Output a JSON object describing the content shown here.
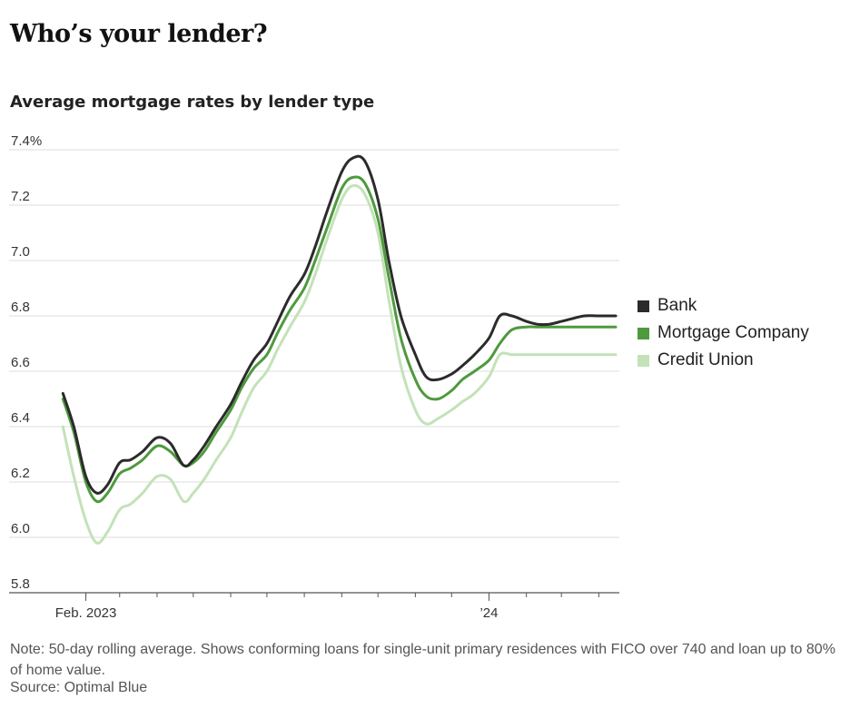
{
  "headline": "Who’s your lender?",
  "note": "Note: 50-day rolling average. Shows conforming loans for single-unit primary residences with FICO over 740 and loan up to 80% of home value.",
  "source": "Source: Optimal Blue",
  "colors": {
    "bank": "#2b2b2b",
    "mortgage_company": "#4e9a3e",
    "credit_union": "#c3e2b8",
    "grid": "#dcdcdc",
    "axis": "#555555"
  },
  "chart_data": {
    "type": "line",
    "title": "Average mortgage rates by lender type",
    "xlabel": "",
    "ylabel": "",
    "x_tick_labels": [
      {
        "date": "2023-02-01",
        "label": "Feb. 2023"
      },
      {
        "date": "2024-01-01",
        "label": "’24"
      }
    ],
    "x_minor_ticks": [
      "2023-02-01",
      "2023-03-01",
      "2023-04-01",
      "2023-05-01",
      "2023-06-01",
      "2023-07-01",
      "2023-08-01",
      "2023-09-01",
      "2023-10-01",
      "2023-11-01",
      "2023-12-01",
      "2024-01-01",
      "2024-02-01",
      "2024-03-01",
      "2024-04-01"
    ],
    "xlim": [
      "2023-01-03",
      "2024-04-18"
    ],
    "ylim": [
      5.8,
      7.4
    ],
    "y_ticks": [
      {
        "value": 5.8,
        "label": "5.8"
      },
      {
        "value": 6.0,
        "label": "6.0"
      },
      {
        "value": 6.2,
        "label": "6.2"
      },
      {
        "value": 6.4,
        "label": "6.4"
      },
      {
        "value": 6.6,
        "label": "6.6"
      },
      {
        "value": 6.8,
        "label": "6.8"
      },
      {
        "value": 7.0,
        "label": "7.0"
      },
      {
        "value": 7.2,
        "label": "7.2"
      },
      {
        "value": 7.4,
        "label": "7.4%"
      }
    ],
    "grid": true,
    "legend_position": "right",
    "x": [
      "2023-01-13",
      "2023-01-22",
      "2023-02-01",
      "2023-02-10",
      "2023-02-19",
      "2023-03-01",
      "2023-03-10",
      "2023-03-20",
      "2023-04-01",
      "2023-04-12",
      "2023-04-23",
      "2023-05-01",
      "2023-05-10",
      "2023-05-20",
      "2023-06-01",
      "2023-06-10",
      "2023-06-20",
      "2023-07-01",
      "2023-07-10",
      "2023-07-20",
      "2023-08-01",
      "2023-08-10",
      "2023-08-20",
      "2023-09-01",
      "2023-09-10",
      "2023-09-20",
      "2023-10-01",
      "2023-10-10",
      "2023-10-20",
      "2023-11-01",
      "2023-11-10",
      "2023-11-20",
      "2023-12-01",
      "2023-12-10",
      "2023-12-20",
      "2024-01-01",
      "2024-01-10",
      "2024-01-20",
      "2024-02-01",
      "2024-02-10",
      "2024-02-20",
      "2024-03-01",
      "2024-03-10",
      "2024-03-20",
      "2024-04-01",
      "2024-04-10",
      "2024-04-15"
    ],
    "series": [
      {
        "name": "Bank",
        "values": [
          6.52,
          6.4,
          6.22,
          6.16,
          6.19,
          6.27,
          6.28,
          6.31,
          6.36,
          6.34,
          6.26,
          6.28,
          6.33,
          6.4,
          6.48,
          6.56,
          6.64,
          6.7,
          6.78,
          6.87,
          6.95,
          7.05,
          7.18,
          7.32,
          7.37,
          7.36,
          7.22,
          7.0,
          6.8,
          6.66,
          6.58,
          6.57,
          6.59,
          6.62,
          6.66,
          6.72,
          6.8,
          6.8,
          6.78,
          6.77,
          6.77,
          6.78,
          6.79,
          6.8,
          6.8,
          6.8,
          6.8
        ]
      },
      {
        "name": "Mortgage Company",
        "values": [
          6.5,
          6.38,
          6.2,
          6.13,
          6.16,
          6.23,
          6.25,
          6.28,
          6.33,
          6.31,
          6.26,
          6.27,
          6.31,
          6.38,
          6.46,
          6.54,
          6.61,
          6.66,
          6.74,
          6.82,
          6.9,
          7.0,
          7.12,
          7.26,
          7.3,
          7.28,
          7.15,
          6.94,
          6.72,
          6.57,
          6.51,
          6.5,
          6.53,
          6.57,
          6.6,
          6.64,
          6.7,
          6.75,
          6.76,
          6.76,
          6.76,
          6.76,
          6.76,
          6.76,
          6.76,
          6.76,
          6.76
        ]
      },
      {
        "name": "Credit Union",
        "values": [
          6.4,
          6.22,
          6.06,
          5.98,
          6.02,
          6.1,
          6.12,
          6.16,
          6.22,
          6.21,
          6.13,
          6.16,
          6.21,
          6.28,
          6.36,
          6.45,
          6.54,
          6.6,
          6.68,
          6.76,
          6.85,
          6.95,
          7.08,
          7.22,
          7.27,
          7.24,
          7.1,
          6.86,
          6.62,
          6.46,
          6.41,
          6.43,
          6.46,
          6.49,
          6.52,
          6.58,
          6.66,
          6.66,
          6.66,
          6.66,
          6.66,
          6.66,
          6.66,
          6.66,
          6.66,
          6.66,
          6.66
        ]
      }
    ]
  }
}
